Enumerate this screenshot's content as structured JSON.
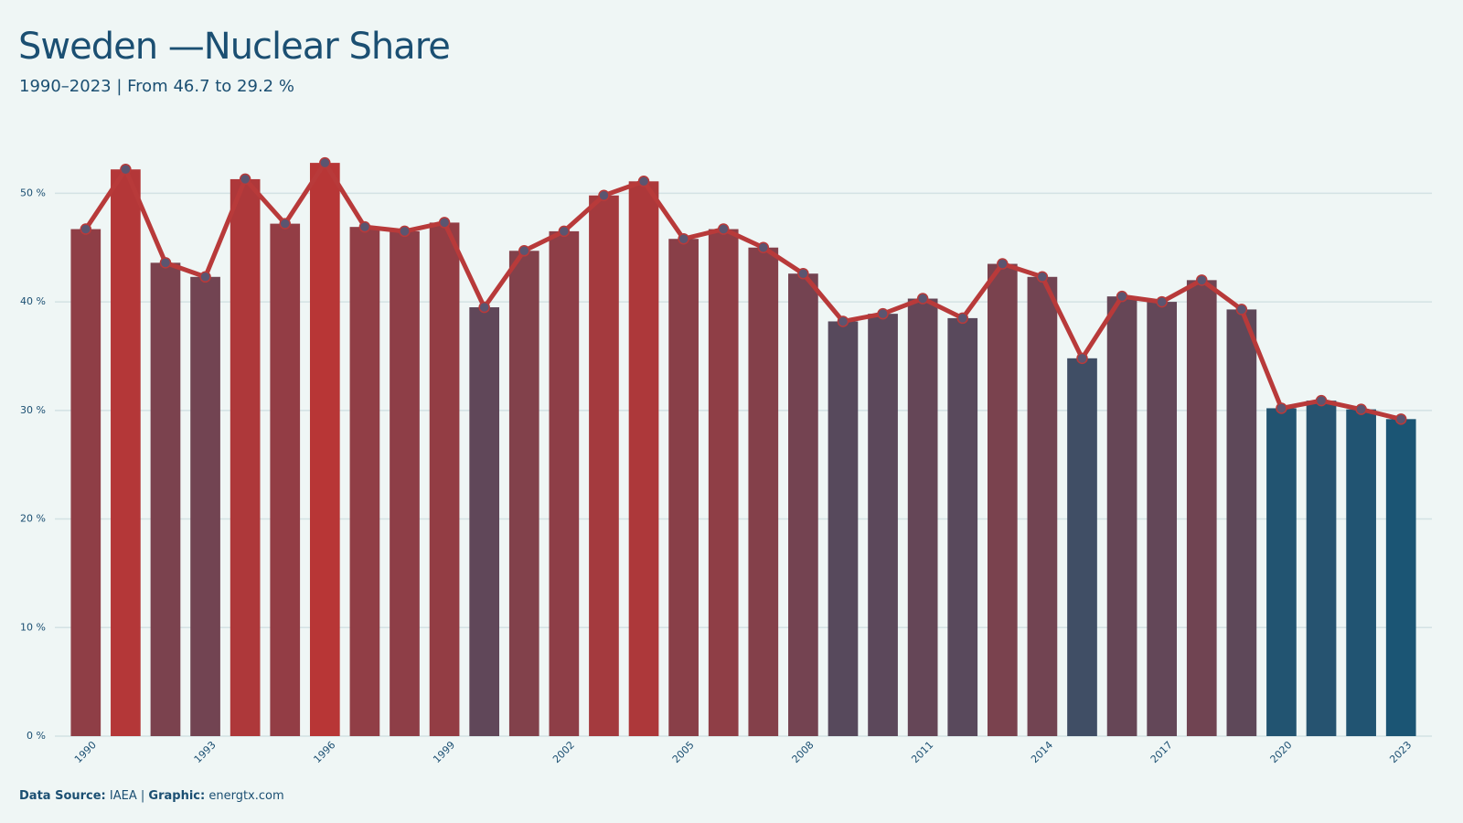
{
  "chart_data": {
    "type": "bar",
    "title": "Sweden —Nuclear Share",
    "subtitle": "1990–2023 | From 46.7 to 29.2 %",
    "categories": [
      "1990",
      null,
      null,
      "1993",
      null,
      null,
      "1996",
      null,
      null,
      "1999",
      null,
      null,
      "2002",
      null,
      null,
      "2005",
      null,
      null,
      "2008",
      null,
      null,
      "2011",
      null,
      null,
      "2014",
      null,
      null,
      "2017",
      null,
      null,
      "2020",
      null,
      null,
      "2023"
    ],
    "values": [
      46.7,
      52.2,
      43.6,
      42.3,
      51.3,
      47.2,
      52.8,
      46.9,
      46.5,
      47.3,
      39.5,
      44.7,
      46.5,
      49.8,
      51.1,
      45.8,
      46.7,
      45.0,
      42.6,
      38.2,
      38.9,
      40.3,
      38.5,
      43.5,
      42.3,
      34.8,
      40.5,
      40.0,
      42.0,
      39.3,
      30.2,
      30.9,
      30.1,
      29.2
    ],
    "color_scale": [
      "#1b5574",
      "#b83636"
    ],
    "line_color": "#b83a3a",
    "marker_color": "#5b5570",
    "ylim": [
      0,
      55
    ],
    "yticks": [
      {
        "value": 0,
        "label": "0 %"
      },
      {
        "value": 10,
        "label": "10 %"
      },
      {
        "value": 20,
        "label": "20 %"
      },
      {
        "value": 30,
        "label": "30 %"
      },
      {
        "value": 40,
        "label": "40 %"
      },
      {
        "value": 50,
        "label": "50 %"
      }
    ],
    "grid": true,
    "footer": {
      "source_label": "Data Source:",
      "source": "IAEA",
      "separator": "|",
      "graphic_label": "Graphic:",
      "graphic": "energtx.com"
    }
  }
}
